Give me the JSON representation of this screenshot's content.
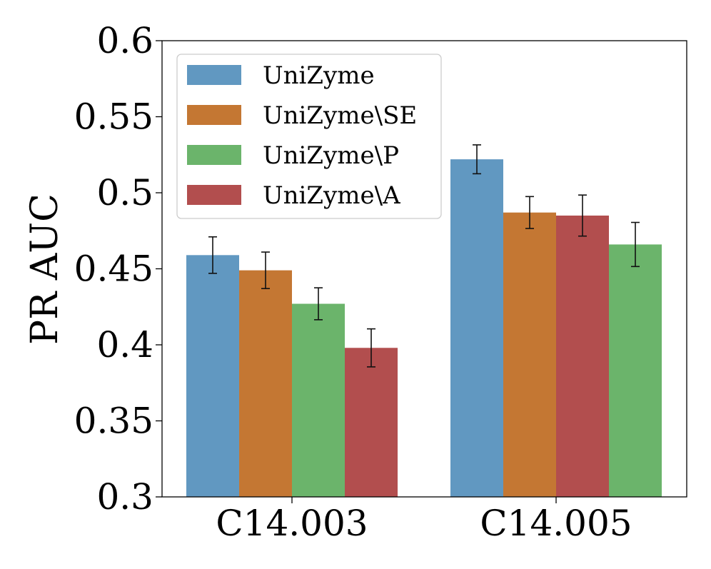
{
  "chart_data": {
    "type": "bar",
    "title": "",
    "xlabel": "",
    "ylabel": "PR AUC",
    "ylim": [
      0.3,
      0.6
    ],
    "yticks": [
      0.3,
      0.35,
      0.4,
      0.45,
      0.5,
      0.55,
      0.6
    ],
    "ytick_labels": [
      "0.3",
      "0.35",
      "0.4",
      "0.45",
      "0.5",
      "0.55",
      "0.6"
    ],
    "categories": [
      "C14.003",
      "C14.005"
    ],
    "legend": {
      "placement": "top-left",
      "entries": [
        "UniZyme",
        "UniZyme\\SE",
        "UniZyme\\P",
        "UniZyme\\A"
      ]
    },
    "series": [
      {
        "name": "UniZyme",
        "color": "#6198c1"
      },
      {
        "name": "UniZyme\\SE",
        "color": "#c47733"
      },
      {
        "name": "UniZyme\\P",
        "color": "#6bb46b"
      },
      {
        "name": "UniZyme\\A",
        "color": "#b24e4e"
      }
    ],
    "groups": [
      {
        "category": "C14.003",
        "bars": [
          {
            "series": "UniZyme",
            "value": 0.459,
            "err": 0.012
          },
          {
            "series": "UniZyme\\SE",
            "value": 0.449,
            "err": 0.012
          },
          {
            "series": "UniZyme\\P",
            "value": 0.427,
            "err": 0.0105
          },
          {
            "series": "UniZyme\\A",
            "value": 0.398,
            "err": 0.0125
          }
        ]
      },
      {
        "category": "C14.005",
        "bars": [
          {
            "series": "UniZyme",
            "value": 0.522,
            "err": 0.0095
          },
          {
            "series": "UniZyme\\SE",
            "value": 0.487,
            "err": 0.0105
          },
          {
            "series": "UniZyme\\A",
            "value": 0.485,
            "err": 0.0135
          },
          {
            "series": "UniZyme\\P",
            "value": 0.466,
            "err": 0.0145
          }
        ]
      }
    ]
  }
}
